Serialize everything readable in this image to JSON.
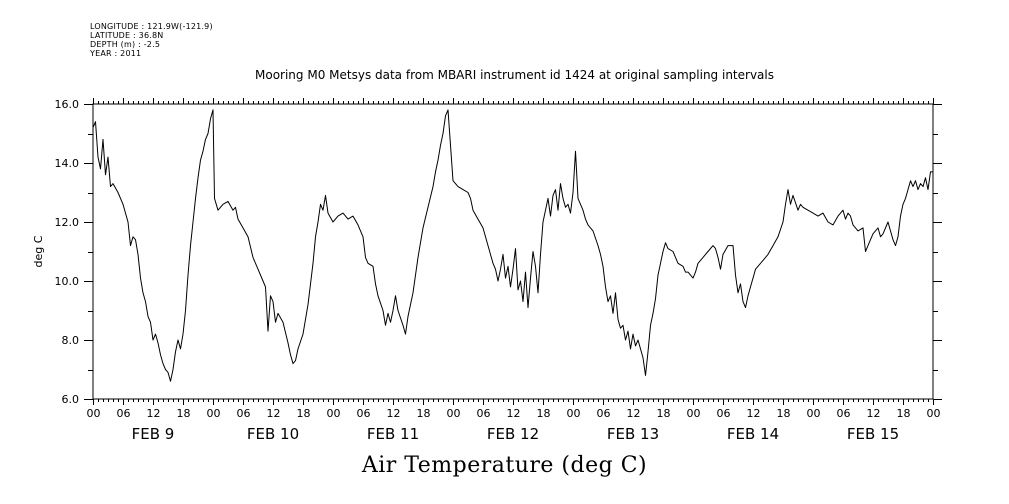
{
  "meta": {
    "longitude": "LONGITUDE : 121.9W(-121.9)",
    "latitude": "LATITUDE : 36.8N",
    "depth": "DEPTH (m) : -2.5",
    "year": "YEAR : 2011"
  },
  "chart_data": {
    "type": "line",
    "title": "Mooring M0 Metsys data from MBARI instrument id 1424 at original sampling intervals",
    "xlabel": "Air Temperature (deg C)",
    "ylabel": "deg C",
    "ylim": [
      6.0,
      16.0
    ],
    "yticks": [
      "6.0",
      "8.0",
      "10.0",
      "12.0",
      "14.0",
      "16.0"
    ],
    "xlim_hours": [
      0,
      168
    ],
    "xtick_hour_labels": [
      "00",
      "06",
      "12",
      "18",
      "00",
      "06",
      "12",
      "18",
      "00",
      "06",
      "12",
      "18",
      "00",
      "06",
      "12",
      "18",
      "00",
      "06",
      "12",
      "18",
      "00",
      "06",
      "12",
      "18",
      "00",
      "06",
      "12",
      "18",
      "00"
    ],
    "day_labels": [
      "FEB  9",
      "FEB 10",
      "FEB 11",
      "FEB 12",
      "FEB 13",
      "FEB 14",
      "FEB 15"
    ],
    "grid": false,
    "series": [
      {
        "values": [
          [
            0,
            15.2
          ],
          [
            0.5,
            15.4
          ],
          [
            1,
            14.2
          ],
          [
            1.5,
            13.8
          ],
          [
            2,
            14.8
          ],
          [
            2.5,
            13.6
          ],
          [
            3,
            14.2
          ],
          [
            3.5,
            13.2
          ],
          [
            4,
            13.3
          ],
          [
            5,
            13.0
          ],
          [
            6,
            12.6
          ],
          [
            7,
            12.0
          ],
          [
            7.5,
            11.2
          ],
          [
            8,
            11.5
          ],
          [
            8.5,
            11.4
          ],
          [
            9,
            10.9
          ],
          [
            9.5,
            10.1
          ],
          [
            10,
            9.6
          ],
          [
            10.5,
            9.3
          ],
          [
            11,
            8.8
          ],
          [
            11.5,
            8.6
          ],
          [
            12,
            8.0
          ],
          [
            12.5,
            8.2
          ],
          [
            13,
            7.9
          ],
          [
            13.5,
            7.5
          ],
          [
            14,
            7.2
          ],
          [
            14.5,
            7.0
          ],
          [
            15,
            6.9
          ],
          [
            15.5,
            6.6
          ],
          [
            16,
            7.0
          ],
          [
            16.5,
            7.6
          ],
          [
            17,
            8.0
          ],
          [
            17.5,
            7.7
          ],
          [
            18,
            8.2
          ],
          [
            18.5,
            9.0
          ],
          [
            19,
            10.2
          ],
          [
            19.5,
            11.2
          ],
          [
            20,
            12.0
          ],
          [
            20.5,
            12.8
          ],
          [
            21,
            13.5
          ],
          [
            21.5,
            14.1
          ],
          [
            22,
            14.4
          ],
          [
            22.5,
            14.8
          ],
          [
            23,
            15.0
          ],
          [
            23.5,
            15.5
          ],
          [
            24,
            15.8
          ],
          [
            24.3,
            12.8
          ],
          [
            25,
            12.4
          ],
          [
            26,
            12.6
          ],
          [
            27,
            12.7
          ],
          [
            28,
            12.4
          ],
          [
            28.5,
            12.5
          ],
          [
            29,
            12.1
          ],
          [
            30,
            11.8
          ],
          [
            31,
            11.5
          ],
          [
            32,
            10.8
          ],
          [
            33,
            10.4
          ],
          [
            34,
            10.0
          ],
          [
            34.5,
            9.8
          ],
          [
            35,
            8.3
          ],
          [
            35.5,
            9.5
          ],
          [
            36,
            9.3
          ],
          [
            36.5,
            8.6
          ],
          [
            37,
            8.9
          ],
          [
            38,
            8.6
          ],
          [
            39,
            7.9
          ],
          [
            39.5,
            7.5
          ],
          [
            40,
            7.2
          ],
          [
            40.5,
            7.3
          ],
          [
            41,
            7.7
          ],
          [
            42,
            8.2
          ],
          [
            43,
            9.2
          ],
          [
            44,
            10.6
          ],
          [
            44.5,
            11.5
          ],
          [
            45,
            12.0
          ],
          [
            45.5,
            12.6
          ],
          [
            46,
            12.4
          ],
          [
            46.5,
            12.9
          ],
          [
            47,
            12.3
          ],
          [
            48,
            12.0
          ],
          [
            49,
            12.2
          ],
          [
            50,
            12.3
          ],
          [
            51,
            12.1
          ],
          [
            52,
            12.2
          ],
          [
            53,
            11.9
          ],
          [
            54,
            11.5
          ],
          [
            54.5,
            10.8
          ],
          [
            55,
            10.6
          ],
          [
            56,
            10.5
          ],
          [
            56.5,
            9.9
          ],
          [
            57,
            9.5
          ],
          [
            58,
            9.0
          ],
          [
            58.5,
            8.5
          ],
          [
            59,
            8.9
          ],
          [
            59.5,
            8.6
          ],
          [
            60,
            9.0
          ],
          [
            60.5,
            9.5
          ],
          [
            61,
            9.0
          ],
          [
            62,
            8.5
          ],
          [
            62.5,
            8.2
          ],
          [
            63,
            8.8
          ],
          [
            64,
            9.6
          ],
          [
            65,
            10.8
          ],
          [
            66,
            11.8
          ],
          [
            67,
            12.5
          ],
          [
            68,
            13.2
          ],
          [
            68.5,
            13.7
          ],
          [
            69,
            14.1
          ],
          [
            69.5,
            14.6
          ],
          [
            70,
            15.0
          ],
          [
            70.5,
            15.6
          ],
          [
            71,
            15.8
          ],
          [
            71.5,
            14.6
          ],
          [
            72,
            13.4
          ],
          [
            73,
            13.2
          ],
          [
            74,
            13.1
          ],
          [
            75,
            13.0
          ],
          [
            75.5,
            12.8
          ],
          [
            76,
            12.4
          ],
          [
            77,
            12.1
          ],
          [
            78,
            11.8
          ],
          [
            78.5,
            11.5
          ],
          [
            79,
            11.2
          ],
          [
            80,
            10.6
          ],
          [
            80.5,
            10.4
          ],
          [
            81,
            10.0
          ],
          [
            81.5,
            10.4
          ],
          [
            82,
            10.9
          ],
          [
            82.5,
            10.1
          ],
          [
            83,
            10.5
          ],
          [
            83.5,
            9.8
          ],
          [
            84,
            10.4
          ],
          [
            84.5,
            11.1
          ],
          [
            85,
            9.7
          ],
          [
            85.5,
            10.0
          ],
          [
            86,
            9.3
          ],
          [
            86.5,
            10.3
          ],
          [
            87,
            9.1
          ],
          [
            87.5,
            10.1
          ],
          [
            88,
            11.0
          ],
          [
            88.5,
            10.5
          ],
          [
            89,
            9.6
          ],
          [
            89.5,
            10.9
          ],
          [
            90,
            12.0
          ],
          [
            90.5,
            12.4
          ],
          [
            91,
            12.8
          ],
          [
            91.5,
            12.2
          ],
          [
            92,
            12.9
          ],
          [
            92.5,
            13.1
          ],
          [
            93,
            12.4
          ],
          [
            93.5,
            13.3
          ],
          [
            94,
            12.8
          ],
          [
            94.5,
            12.5
          ],
          [
            95,
            12.6
          ],
          [
            95.5,
            12.3
          ],
          [
            96,
            13.0
          ],
          [
            96.5,
            14.4
          ],
          [
            97,
            12.8
          ],
          [
            98,
            12.4
          ],
          [
            98.5,
            12.1
          ],
          [
            99,
            11.9
          ],
          [
            100,
            11.7
          ],
          [
            101,
            11.2
          ],
          [
            101.5,
            10.9
          ],
          [
            102,
            10.5
          ],
          [
            102.5,
            9.8
          ],
          [
            103,
            9.3
          ],
          [
            103.5,
            9.5
          ],
          [
            104,
            8.9
          ],
          [
            104.5,
            9.6
          ],
          [
            105,
            8.7
          ],
          [
            105.5,
            8.4
          ],
          [
            106,
            8.5
          ],
          [
            106.5,
            8.0
          ],
          [
            107,
            8.3
          ],
          [
            107.5,
            7.7
          ],
          [
            108,
            8.2
          ],
          [
            108.5,
            7.8
          ],
          [
            109,
            8.0
          ],
          [
            109.5,
            7.7
          ],
          [
            110,
            7.4
          ],
          [
            110.5,
            6.8
          ],
          [
            111,
            7.6
          ],
          [
            111.5,
            8.5
          ],
          [
            112,
            8.9
          ],
          [
            112.5,
            9.4
          ],
          [
            113,
            10.2
          ],
          [
            113.5,
            10.6
          ],
          [
            114,
            11.0
          ],
          [
            114.5,
            11.3
          ],
          [
            115,
            11.1
          ],
          [
            116,
            11.0
          ],
          [
            116.5,
            10.8
          ],
          [
            117,
            10.6
          ],
          [
            118,
            10.5
          ],
          [
            118.5,
            10.3
          ],
          [
            119,
            10.3
          ],
          [
            120,
            10.1
          ],
          [
            120.5,
            10.3
          ],
          [
            121,
            10.6
          ],
          [
            122,
            10.8
          ],
          [
            123,
            11.0
          ],
          [
            124,
            11.2
          ],
          [
            124.5,
            11.1
          ],
          [
            125,
            10.8
          ],
          [
            125.5,
            10.4
          ],
          [
            126,
            10.9
          ],
          [
            127,
            11.2
          ],
          [
            128,
            11.2
          ],
          [
            128.5,
            10.2
          ],
          [
            129,
            9.6
          ],
          [
            129.5,
            9.9
          ],
          [
            130,
            9.3
          ],
          [
            130.5,
            9.1
          ],
          [
            131,
            9.5
          ],
          [
            132,
            10.1
          ],
          [
            132.5,
            10.4
          ],
          [
            133,
            10.5
          ],
          [
            134,
            10.7
          ],
          [
            135,
            10.9
          ],
          [
            136,
            11.2
          ],
          [
            137,
            11.5
          ],
          [
            138,
            12.0
          ],
          [
            138.5,
            12.6
          ],
          [
            139,
            13.1
          ],
          [
            139.5,
            12.6
          ],
          [
            140,
            12.9
          ],
          [
            141,
            12.4
          ],
          [
            141.5,
            12.6
          ],
          [
            142,
            12.5
          ],
          [
            143,
            12.4
          ],
          [
            144,
            12.3
          ],
          [
            145,
            12.2
          ],
          [
            146,
            12.3
          ],
          [
            147,
            12.0
          ],
          [
            148,
            11.9
          ],
          [
            149,
            12.2
          ],
          [
            150,
            12.4
          ],
          [
            150.5,
            12.1
          ],
          [
            151,
            12.3
          ],
          [
            151.5,
            12.2
          ],
          [
            152,
            11.9
          ],
          [
            153,
            11.7
          ],
          [
            154,
            11.8
          ],
          [
            154.5,
            11.0
          ],
          [
            155,
            11.2
          ],
          [
            156,
            11.6
          ],
          [
            157,
            11.8
          ],
          [
            157.5,
            11.5
          ],
          [
            158,
            11.6
          ],
          [
            159,
            12.0
          ],
          [
            159.5,
            11.7
          ],
          [
            160,
            11.4
          ],
          [
            160.5,
            11.2
          ],
          [
            161,
            11.5
          ],
          [
            161.5,
            12.2
          ],
          [
            162,
            12.6
          ],
          [
            162.5,
            12.8
          ],
          [
            163,
            13.1
          ],
          [
            163.5,
            13.4
          ],
          [
            164,
            13.2
          ],
          [
            164.5,
            13.4
          ],
          [
            165,
            13.1
          ],
          [
            165.5,
            13.3
          ],
          [
            166,
            13.2
          ],
          [
            166.5,
            13.5
          ],
          [
            167,
            13.1
          ],
          [
            167.5,
            13.7
          ],
          [
            168,
            13.7
          ]
        ]
      }
    ]
  }
}
